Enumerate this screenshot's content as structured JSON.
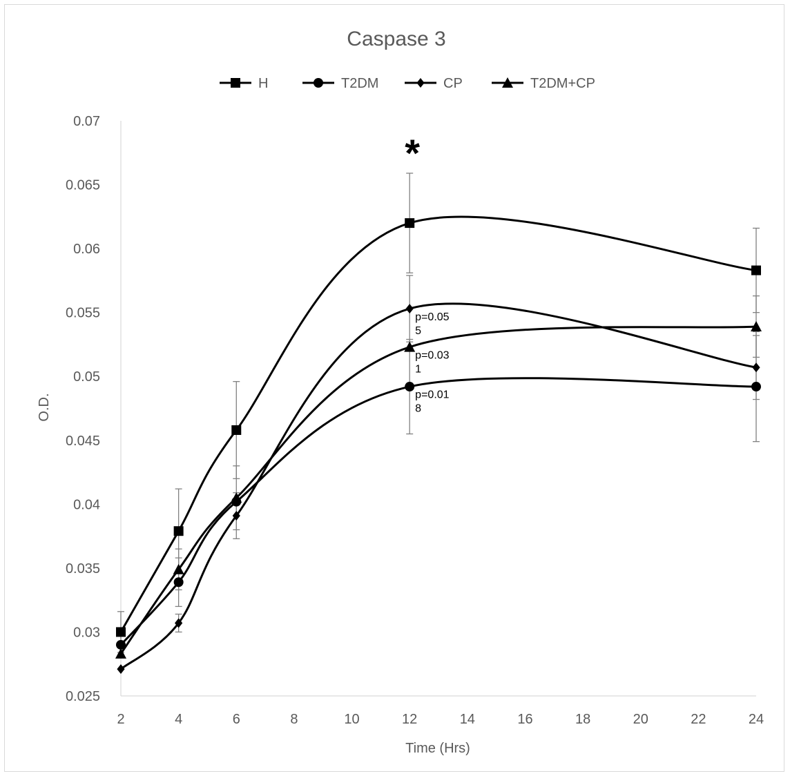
{
  "chart_data": {
    "type": "line",
    "title": "Caspase 3",
    "xlabel": "Time (Hrs)",
    "ylabel": "O.D.",
    "xlim": [
      2,
      24
    ],
    "ylim": [
      0.025,
      0.07
    ],
    "x_ticks": [
      "2",
      "4",
      "6",
      "8",
      "10",
      "12",
      "14",
      "16",
      "18",
      "20",
      "22",
      "24"
    ],
    "y_ticks": [
      "0.025",
      "0.03",
      "0.035",
      "0.04",
      "0.045",
      "0.05",
      "0.055",
      "0.06",
      "0.065",
      "0.07"
    ],
    "grid": false,
    "legend_position": "top",
    "x": [
      2,
      4,
      6,
      12,
      24
    ],
    "series": [
      {
        "name": "H",
        "marker": "square",
        "values": [
          0.03,
          0.0379,
          0.0458,
          0.062,
          0.0583
        ],
        "errors": [
          0.0016,
          0.0033,
          0.0038,
          0.0039,
          0.0033
        ]
      },
      {
        "name": "T2DM",
        "marker": "circle",
        "values": [
          0.029,
          0.0339,
          0.0402,
          0.0492,
          0.0492
        ],
        "errors": [
          null,
          0.0019,
          null,
          0.0037,
          0.0043
        ]
      },
      {
        "name": "CP",
        "marker": "diamond",
        "values": [
          0.0271,
          0.0307,
          0.0391,
          0.0553,
          0.0507
        ],
        "errors": [
          null,
          0.0007,
          0.0018,
          0.0026,
          0.0025
        ]
      },
      {
        "name": "T2DM+CP",
        "marker": "triangle",
        "values": [
          0.0283,
          0.0349,
          0.0405,
          0.0523,
          0.0539
        ],
        "errors": [
          null,
          0.0016,
          0.0025,
          null,
          0.0024
        ]
      }
    ],
    "annotations": [
      {
        "lines": [
          "p=0.05",
          "5"
        ],
        "x": 12,
        "y": 0.0544
      },
      {
        "lines": [
          "p=0.03",
          "1"
        ],
        "x": 12,
        "y": 0.0514
      },
      {
        "lines": [
          "p=0.01",
          "8"
        ],
        "x": 12,
        "y": 0.0483
      },
      {
        "lines": [
          "*"
        ],
        "x": 12,
        "y": 0.0672,
        "star": true
      }
    ]
  }
}
